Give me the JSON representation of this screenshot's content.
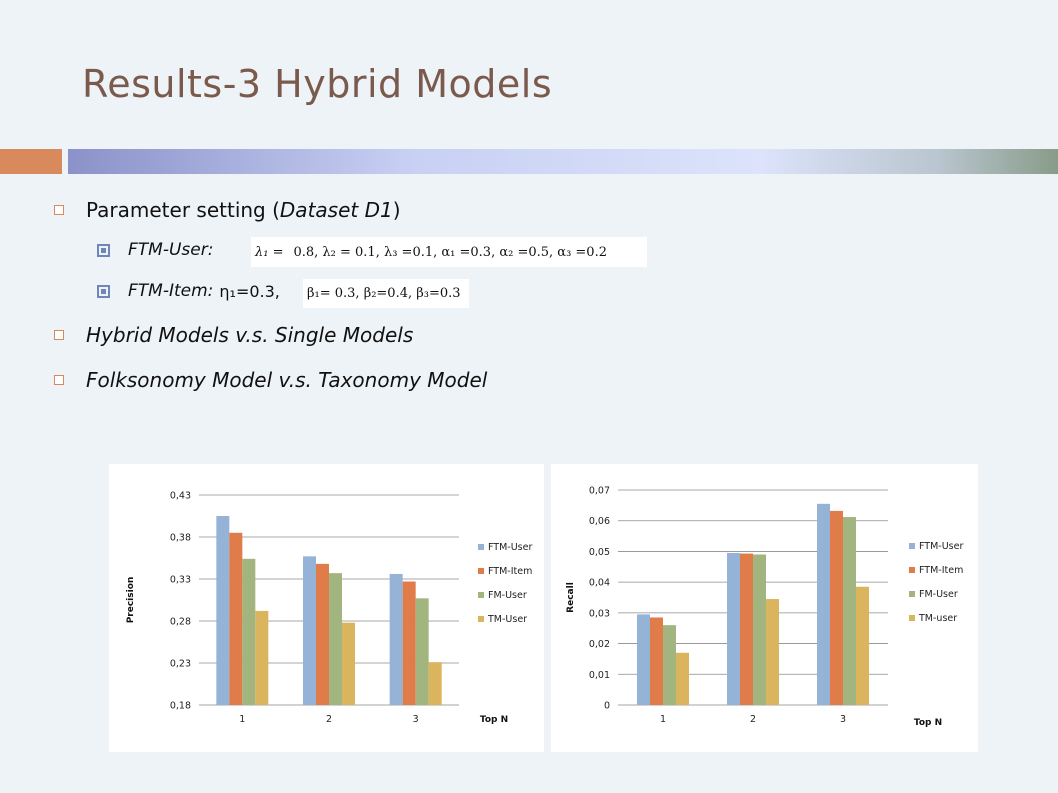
{
  "slide": {
    "title": "Results-3 Hybrid Models"
  },
  "bullets": {
    "param_prefix": "Parameter setting (",
    "param_dataset": "Dataset D1",
    "param_suffix": ")",
    "ftm_user_label": "FTM-User:",
    "ftm_user_lambda1": "λ₁ =",
    "ftm_user_formula": "0.8,  λ₂ =  0.1,  λ₃ =0.1,  α₁ =0.3,  α₂ =0.5,  α₃ =0.2",
    "ftm_item_label": "FTM-Item:",
    "ftm_item_eta": "η₁=0.3,",
    "ftm_item_formula": "β₁= 0.3,  β₂=0.4,  β₃=0.3",
    "hybrid": "Hybrid Models v.s. Single Models",
    "folksonomy": "Folksonomy Model v.s. Taxonomy Model"
  },
  "colors": {
    "series": [
      "#94b3d6",
      "#e07b4a",
      "#a3b57f",
      "#dbb45e"
    ],
    "title": "#7b5a4e",
    "accent": "#d98a5c"
  },
  "chart_data": [
    {
      "type": "bar",
      "title": "",
      "xlabel": "Top N",
      "ylabel": "Precision",
      "categories": [
        "1",
        "2",
        "3"
      ],
      "ylim": [
        0.18,
        0.43
      ],
      "yticks": [
        "0,18",
        "0,23",
        "0,28",
        "0,33",
        "0,38",
        "0,43"
      ],
      "grid": true,
      "legend_position": "right",
      "series": [
        {
          "name": "FTM-User",
          "values": [
            0.405,
            0.357,
            0.336
          ]
        },
        {
          "name": "FTM-Item",
          "values": [
            0.385,
            0.348,
            0.327
          ]
        },
        {
          "name": "FM-User",
          "values": [
            0.354,
            0.337,
            0.307
          ]
        },
        {
          "name": "TM-User",
          "values": [
            0.292,
            0.278,
            0.231
          ]
        }
      ]
    },
    {
      "type": "bar",
      "title": "",
      "xlabel": "Top N",
      "ylabel": "Recall",
      "categories": [
        "1",
        "2",
        "3"
      ],
      "ylim": [
        0,
        0.07
      ],
      "yticks": [
        "0",
        "0,01",
        "0,02",
        "0,03",
        "0,04",
        "0,05",
        "0,06",
        "0,07"
      ],
      "grid": true,
      "legend_position": "right",
      "series": [
        {
          "name": "FTM-User",
          "values": [
            0.0295,
            0.0495,
            0.0655
          ]
        },
        {
          "name": "FTM-Item",
          "values": [
            0.0285,
            0.0493,
            0.0632
          ]
        },
        {
          "name": "FM-User",
          "values": [
            0.026,
            0.049,
            0.0612
          ]
        },
        {
          "name": "TM-user",
          "values": [
            0.017,
            0.0345,
            0.0385
          ]
        }
      ]
    }
  ]
}
